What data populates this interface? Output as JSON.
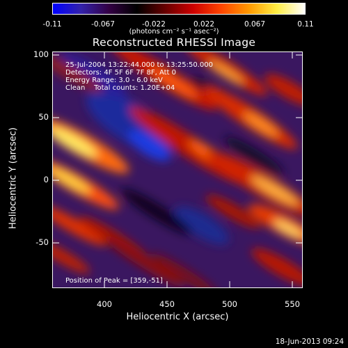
{
  "colorbar": {
    "ticks": [
      "-0.11",
      "-0.067",
      "-0.022",
      "0.022",
      "0.067",
      "0.11"
    ],
    "units": "(photons cm⁻² s⁻¹ asec⁻²)",
    "colors": [
      "#0000ff",
      "#3322aa",
      "#330044",
      "#000000",
      "#660000",
      "#cc0000",
      "#ff4400",
      "#ff9900",
      "#ffee44",
      "#ffffff"
    ]
  },
  "title": "Reconstructed RHESSI Image",
  "annotations": {
    "time": "25-Jul-2004 13:22:44.000 to 13:25:50.000",
    "detectors": "Detectors: 4F 5F 6F 7F 8F, Att 0",
    "energy": "Energy Range: 3.0 - 6.0 keV",
    "clean": "Clean    Total counts: 1.20E+04",
    "peak": "Position of Peak = [359,-51]"
  },
  "axes": {
    "xlabel": "Heliocentric X (arcsec)",
    "ylabel": "Heliocentric Y (arcsec)",
    "xticks": [
      "400",
      "450",
      "500",
      "550"
    ],
    "yticks": [
      "100",
      "50",
      "0",
      "-50"
    ]
  },
  "datestamp": "18-Jun-2013 09:24"
}
